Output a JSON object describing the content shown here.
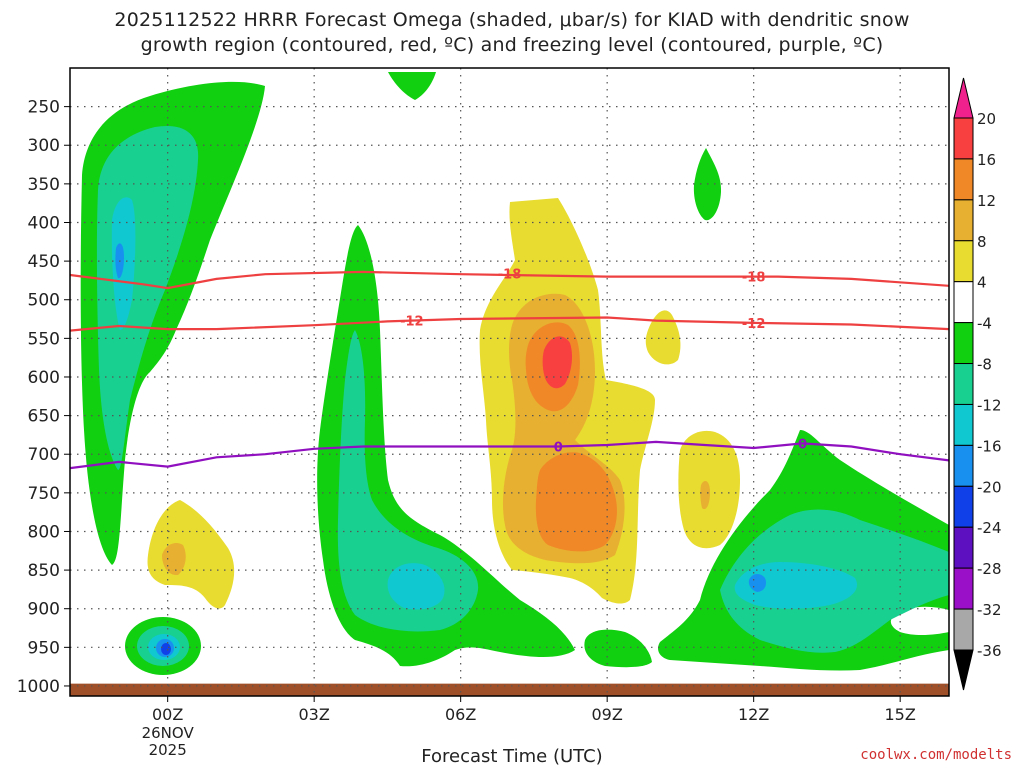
{
  "title": {
    "line1": "2025112522 HRRR Forecast Omega (shaded, μbar/s) for KIAD with dendritic snow",
    "line2": "growth region (contoured, red, ºC) and freezing level (contoured, purple, ºC)"
  },
  "credit": "coolwx.com/modelts",
  "chart_data": {
    "type": "heatmap",
    "xlabel": "Forecast Time (UTC)",
    "ylabel": "",
    "x_ticks": [
      {
        "hour": 2,
        "label": "00Z",
        "sub": [
          "26NOV",
          "2025"
        ]
      },
      {
        "hour": 5,
        "label": "03Z"
      },
      {
        "hour": 8,
        "label": "06Z"
      },
      {
        "hour": 11,
        "label": "09Z"
      },
      {
        "hour": 14,
        "label": "12Z"
      },
      {
        "hour": 17,
        "label": "15Z"
      }
    ],
    "x_range_hours": [
      0,
      18
    ],
    "y_ticks": [
      250,
      300,
      350,
      400,
      450,
      500,
      550,
      600,
      650,
      700,
      750,
      800,
      850,
      900,
      950,
      1000
    ],
    "y_range_mb": [
      200,
      1013
    ],
    "grid": true,
    "colorbar": {
      "levels": [
        -36,
        -32,
        -28,
        -24,
        -20,
        -16,
        -12,
        -8,
        -4,
        4,
        8,
        12,
        16,
        20
      ],
      "bands": [
        {
          "from": -40,
          "to": -36,
          "color": "#000000"
        },
        {
          "from": -36,
          "to": -32,
          "color": "#a8a8a8"
        },
        {
          "from": -32,
          "to": -28,
          "color": "#9a10c8"
        },
        {
          "from": -28,
          "to": -24,
          "color": "#5c10c0"
        },
        {
          "from": -24,
          "to": -20,
          "color": "#1040e8"
        },
        {
          "from": -20,
          "to": -16,
          "color": "#1890f0"
        },
        {
          "from": -16,
          "to": -12,
          "color": "#10c8d0"
        },
        {
          "from": -12,
          "to": -8,
          "color": "#18d090"
        },
        {
          "from": -8,
          "to": -4,
          "color": "#10d010"
        },
        {
          "from": -4,
          "to": 4,
          "color": "#ffffff"
        },
        {
          "from": 4,
          "to": 8,
          "color": "#e8dc30"
        },
        {
          "from": 8,
          "to": 12,
          "color": "#e8b030"
        },
        {
          "from": 12,
          "to": 16,
          "color": "#f08828"
        },
        {
          "from": 16,
          "to": 20,
          "color": "#f84040"
        },
        {
          "from": 20,
          "to": 24,
          "color": "#f0208c"
        }
      ]
    },
    "dgz_contours": [
      {
        "label": "-18",
        "color": "#ee4040",
        "points": [
          [
            0,
            468
          ],
          [
            1.5,
            480
          ],
          [
            2,
            485
          ],
          [
            3,
            473
          ],
          [
            4,
            467
          ],
          [
            6,
            464
          ],
          [
            8,
            467
          ],
          [
            11,
            470
          ],
          [
            13,
            470
          ],
          [
            14.5,
            470
          ],
          [
            16,
            473
          ],
          [
            18,
            482
          ]
        ],
        "label_positions": [
          [
            9,
            466
          ],
          [
            14,
            470
          ]
        ]
      },
      {
        "label": "-12",
        "color": "#ee4040",
        "points": [
          [
            0,
            540
          ],
          [
            1,
            534
          ],
          [
            2,
            538
          ],
          [
            3,
            538
          ],
          [
            5,
            533
          ],
          [
            6.5,
            528
          ],
          [
            8,
            525
          ],
          [
            11,
            523
          ],
          [
            12,
            527
          ],
          [
            14,
            530
          ],
          [
            16,
            532
          ],
          [
            18,
            538
          ]
        ],
        "label_positions": [
          [
            7,
            527
          ],
          [
            14,
            530
          ]
        ]
      }
    ],
    "freezing_level": {
      "label": "0",
      "color": "#9010c0",
      "points": [
        [
          0,
          718
        ],
        [
          1,
          710
        ],
        [
          2,
          716
        ],
        [
          3,
          704
        ],
        [
          4,
          700
        ],
        [
          5,
          693
        ],
        [
          6,
          690
        ],
        [
          8,
          690
        ],
        [
          10,
          690
        ],
        [
          11,
          688
        ],
        [
          12,
          684
        ],
        [
          13,
          688
        ],
        [
          14,
          692
        ],
        [
          15,
          686
        ],
        [
          16,
          690
        ],
        [
          17,
          700
        ],
        [
          18,
          708
        ]
      ],
      "label_positions": [
        [
          10,
          690
        ],
        [
          15,
          686
        ]
      ]
    },
    "ground": {
      "color": "#a05028",
      "top_mb": 997
    }
  }
}
